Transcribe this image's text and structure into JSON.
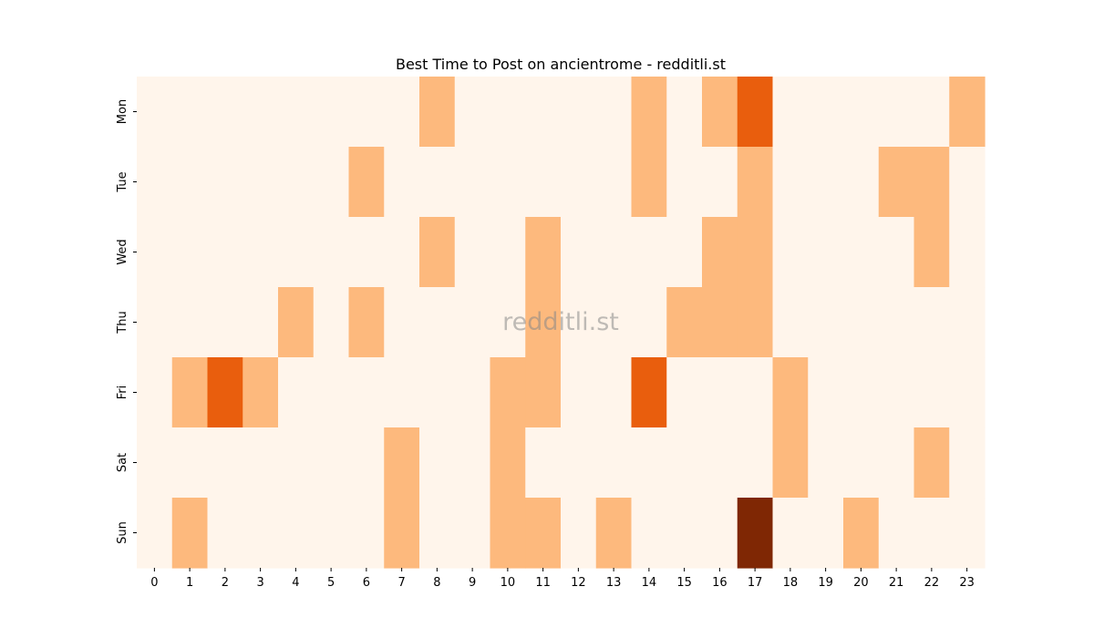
{
  "chart_data": {
    "type": "heatmap",
    "title": "Best Time to Post on ancientrome - redditli.st",
    "xlabel": "",
    "ylabel": "",
    "x_categories": [
      "0",
      "1",
      "2",
      "3",
      "4",
      "5",
      "6",
      "7",
      "8",
      "9",
      "10",
      "11",
      "12",
      "13",
      "14",
      "15",
      "16",
      "17",
      "18",
      "19",
      "20",
      "21",
      "22",
      "23"
    ],
    "y_categories": [
      "Mon",
      "Tue",
      "Wed",
      "Thu",
      "Fri",
      "Sat",
      "Sun"
    ],
    "values": [
      [
        0,
        0,
        0,
        0,
        0,
        0,
        0,
        0,
        1,
        0,
        0,
        0,
        0,
        0,
        1,
        0,
        1,
        2,
        0,
        0,
        0,
        0,
        0,
        1
      ],
      [
        0,
        0,
        0,
        0,
        0,
        0,
        1,
        0,
        0,
        0,
        0,
        0,
        0,
        0,
        1,
        0,
        0,
        1,
        0,
        0,
        0,
        1,
        1,
        0
      ],
      [
        0,
        0,
        0,
        0,
        0,
        0,
        0,
        0,
        1,
        0,
        0,
        1,
        0,
        0,
        0,
        0,
        1,
        1,
        0,
        0,
        0,
        0,
        1,
        0
      ],
      [
        0,
        0,
        0,
        0,
        1,
        0,
        1,
        0,
        0,
        0,
        0,
        1,
        0,
        0,
        0,
        1,
        1,
        1,
        0,
        0,
        0,
        0,
        0,
        0
      ],
      [
        0,
        1,
        2,
        1,
        0,
        0,
        0,
        0,
        0,
        0,
        1,
        1,
        0,
        0,
        2,
        0,
        0,
        0,
        1,
        0,
        0,
        0,
        0,
        0
      ],
      [
        0,
        0,
        0,
        0,
        0,
        0,
        0,
        1,
        0,
        0,
        1,
        0,
        0,
        0,
        0,
        0,
        0,
        0,
        1,
        0,
        0,
        0,
        1,
        0
      ],
      [
        0,
        1,
        0,
        0,
        0,
        0,
        0,
        1,
        0,
        0,
        1,
        1,
        0,
        1,
        0,
        0,
        0,
        3,
        0,
        0,
        1,
        0,
        0,
        0
      ]
    ],
    "colors": [
      "#fff5eb",
      "#fdb97d",
      "#e95e0d",
      "#7f2704"
    ],
    "colorbar": false,
    "watermark": "redditli.st",
    "grid": false
  }
}
